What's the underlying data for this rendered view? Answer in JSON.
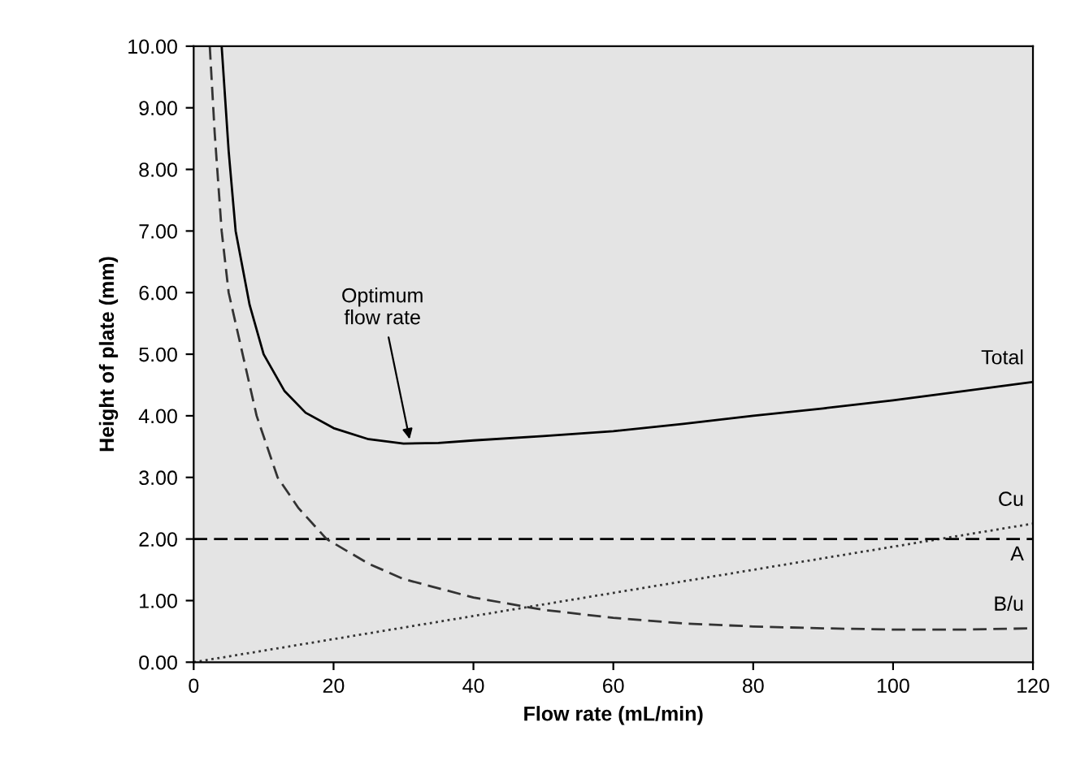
{
  "chart_data": {
    "type": "line",
    "xlabel": "Flow rate (mL/min)",
    "ylabel": "Height of plate (mm)",
    "xlim": [
      0,
      120
    ],
    "ylim": [
      0,
      10
    ],
    "xticks": [
      0,
      20,
      40,
      60,
      80,
      100,
      120
    ],
    "yticks": [
      {
        "value": 0,
        "label": "0.00"
      },
      {
        "value": 1,
        "label": "1.00"
      },
      {
        "value": 2,
        "label": "2.00"
      },
      {
        "value": 3,
        "label": "3.00"
      },
      {
        "value": 4,
        "label": "4.00"
      },
      {
        "value": 5,
        "label": "5.00"
      },
      {
        "value": 6,
        "label": "6.00"
      },
      {
        "value": 7,
        "label": "7.00"
      },
      {
        "value": 8,
        "label": "8.00"
      },
      {
        "value": 9,
        "label": "9.00"
      },
      {
        "value": 10,
        "label": "10.00"
      }
    ],
    "grid": false,
    "legend": false,
    "marker": "none",
    "series": [
      {
        "name": "Total",
        "color": "#000000",
        "line_style": "solid",
        "x": [
          4,
          5,
          6,
          8,
          10,
          13,
          16,
          20,
          25,
          30,
          35,
          40,
          50,
          60,
          70,
          80,
          90,
          100,
          110,
          120
        ],
        "values": [
          10,
          8.3,
          7,
          5.8,
          5.0,
          4.4,
          4.05,
          3.8,
          3.62,
          3.55,
          3.56,
          3.6,
          3.67,
          3.75,
          3.87,
          4.0,
          4.12,
          4.25,
          4.4,
          4.55
        ]
      },
      {
        "name": "Cu",
        "color": "#333333",
        "line_style": "dotted",
        "x": [
          0,
          120
        ],
        "values": [
          0,
          2.25
        ]
      },
      {
        "name": "A",
        "color": "#000000",
        "line_style": "dashed",
        "x": [
          0,
          120
        ],
        "values": [
          2,
          2
        ]
      },
      {
        "name": "B/u",
        "color": "#333333",
        "line_style": "dashed",
        "x": [
          2.3,
          3,
          4,
          5,
          7,
          9,
          12,
          15,
          19,
          25,
          30,
          40,
          50,
          60,
          70,
          80,
          90,
          100,
          110,
          120
        ],
        "values": [
          10,
          8.6,
          7,
          6,
          5,
          4,
          3,
          2.5,
          2,
          1.6,
          1.35,
          1.05,
          0.85,
          0.72,
          0.63,
          0.58,
          0.55,
          0.53,
          0.53,
          0.55
        ]
      }
    ],
    "annotations": [
      {
        "text": "Optimum\nflow rate",
        "x": 31,
        "y": 3.55
      }
    ]
  }
}
